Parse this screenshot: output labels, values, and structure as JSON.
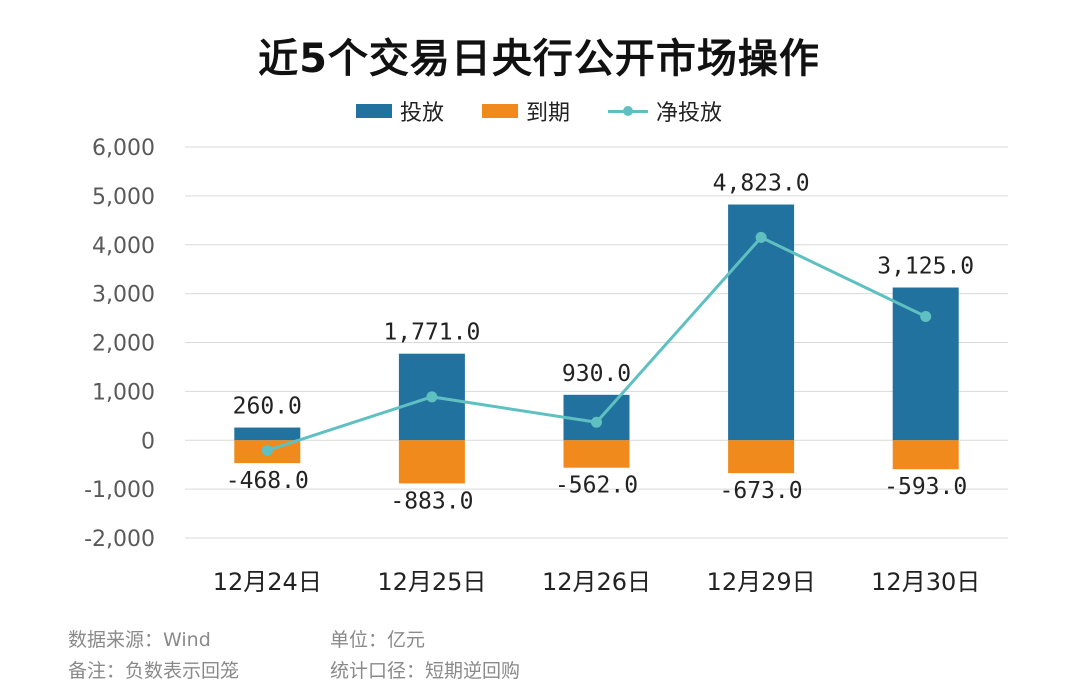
{
  "title": "近5个交易日央行公开市场操作",
  "colors": {
    "put": "#22729f",
    "expire": "#f08a1c",
    "net": "#5fc0c2",
    "grid": "#d9d9d9",
    "axis_text": "#595959"
  },
  "legend": [
    "投放",
    "到期",
    "净投放"
  ],
  "chart_data": {
    "type": "bar",
    "title": "近5个交易日央行公开市场操作",
    "categories": [
      "12月24日",
      "12月25日",
      "12月26日",
      "12月29日",
      "12月30日"
    ],
    "series": [
      {
        "name": "投放",
        "type": "bar",
        "values": [
          260.0,
          1771.0,
          930.0,
          4823.0,
          3125.0
        ],
        "labels": [
          "260.0",
          "1,771.0",
          "930.0",
          "4,823.0",
          "3,125.0"
        ]
      },
      {
        "name": "到期",
        "type": "bar",
        "values": [
          -468.0,
          -883.0,
          -562.0,
          -673.0,
          -593.0
        ],
        "labels": [
          "-468.0",
          "-883.0",
          "-562.0",
          "-673.0",
          "-593.0"
        ]
      },
      {
        "name": "净投放",
        "type": "line",
        "values": [
          -208.0,
          888.0,
          368.0,
          4150.0,
          2532.0
        ]
      }
    ],
    "ylim": [
      -2000,
      6000
    ],
    "yticks": [
      6000,
      5000,
      4000,
      3000,
      2000,
      1000,
      0,
      -1000,
      -2000
    ],
    "ytick_labels": [
      "6,000",
      "5,000",
      "4,000",
      "3,000",
      "2,000",
      "1,000",
      "0",
      "-1,000",
      "-2,000"
    ],
    "grid": true,
    "legend_position": "top-center"
  },
  "footer": {
    "source": "数据来源：Wind",
    "unit": "单位：亿元",
    "note": "备注：负数表示回笼",
    "scope": "统计口径：短期逆回购"
  }
}
